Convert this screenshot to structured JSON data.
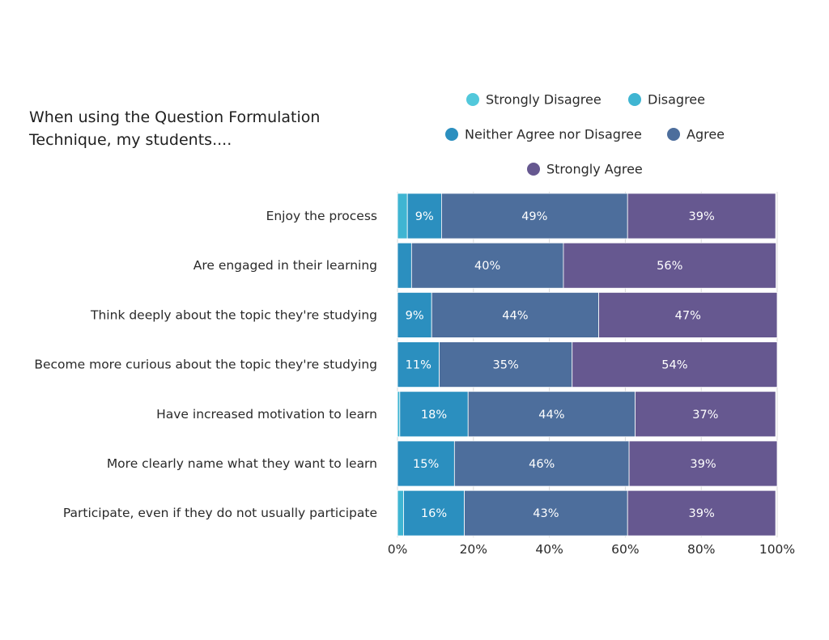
{
  "chart_data": {
    "type": "bar",
    "orientation": "horizontal",
    "stacked": true,
    "title": "When using the Question Formulation Technique, my students....",
    "title_lines": [
      "When using the Question Formulation",
      "Technique, my students...."
    ],
    "xlabel": "",
    "ylabel": "",
    "xlim": [
      0,
      100
    ],
    "x_ticks": [
      "0%",
      "20%",
      "40%",
      "60%",
      "80%",
      "100%"
    ],
    "grid": true,
    "legend_position": "top-right",
    "categories": [
      "Enjoy the process",
      "Are engaged in their learning",
      "Think deeply about the topic they're studying",
      "Become more curious about the topic they're studying",
      "Have increased motivation to learn",
      "More clearly name what they want to learn",
      "Participate, even if they do not usually participate"
    ],
    "series": [
      {
        "name": "Strongly Disagree",
        "color": "#52c8db",
        "values": [
          0,
          0,
          0,
          0,
          0,
          0,
          0
        ],
        "labels": [
          "",
          "",
          "",
          "",
          "",
          "",
          ""
        ]
      },
      {
        "name": "Disagree",
        "color": "#3fb5d2",
        "values": [
          2.6,
          0,
          0,
          0,
          0.6,
          0,
          1.6
        ],
        "labels": [
          "",
          "",
          "",
          "",
          "",
          "",
          ""
        ]
      },
      {
        "name": "Neither Agree nor Disagree",
        "color": "#2b8fbf",
        "values": [
          9,
          3.7,
          9,
          11,
          18,
          15,
          16
        ],
        "labels": [
          "9%",
          "",
          "9%",
          "11%",
          "18%",
          "15%",
          "16%"
        ]
      },
      {
        "name": "Agree",
        "color": "#4d6e9c",
        "values": [
          49,
          40,
          44,
          35,
          44,
          46,
          43
        ],
        "labels": [
          "49%",
          "40%",
          "44%",
          "35%",
          "44%",
          "46%",
          "43%"
        ]
      },
      {
        "name": "Strongly Agree",
        "color": "#665890",
        "values": [
          39,
          56,
          47,
          54,
          37,
          39,
          39
        ],
        "labels": [
          "39%",
          "56%",
          "47%",
          "54%",
          "37%",
          "39%",
          "39%"
        ]
      }
    ]
  }
}
